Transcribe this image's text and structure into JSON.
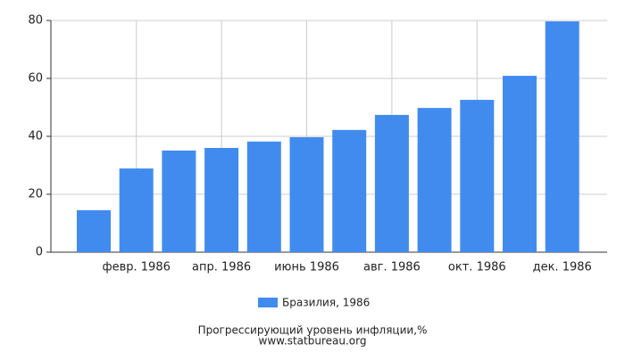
{
  "chart_data": {
    "type": "bar",
    "categories": [
      null,
      "февр. 1986",
      null,
      "апр. 1986",
      null,
      "июнь 1986",
      null,
      "авг. 1986",
      null,
      "окт. 1986",
      null,
      "дек. 1986"
    ],
    "series": [
      {
        "name": "Бразилия, 1986",
        "color": "#418bef",
        "values": [
          14.5,
          28.9,
          35.1,
          36.0,
          38.2,
          39.7,
          42.2,
          47.4,
          49.8,
          52.6,
          60.9,
          79.7
        ]
      }
    ],
    "ylim": [
      0,
      80
    ],
    "yticks": [
      0,
      20,
      40,
      60,
      80
    ],
    "grid": true,
    "title": "Прогрессирующий уровень инфляции,%",
    "source": "www.statbureau.org"
  }
}
